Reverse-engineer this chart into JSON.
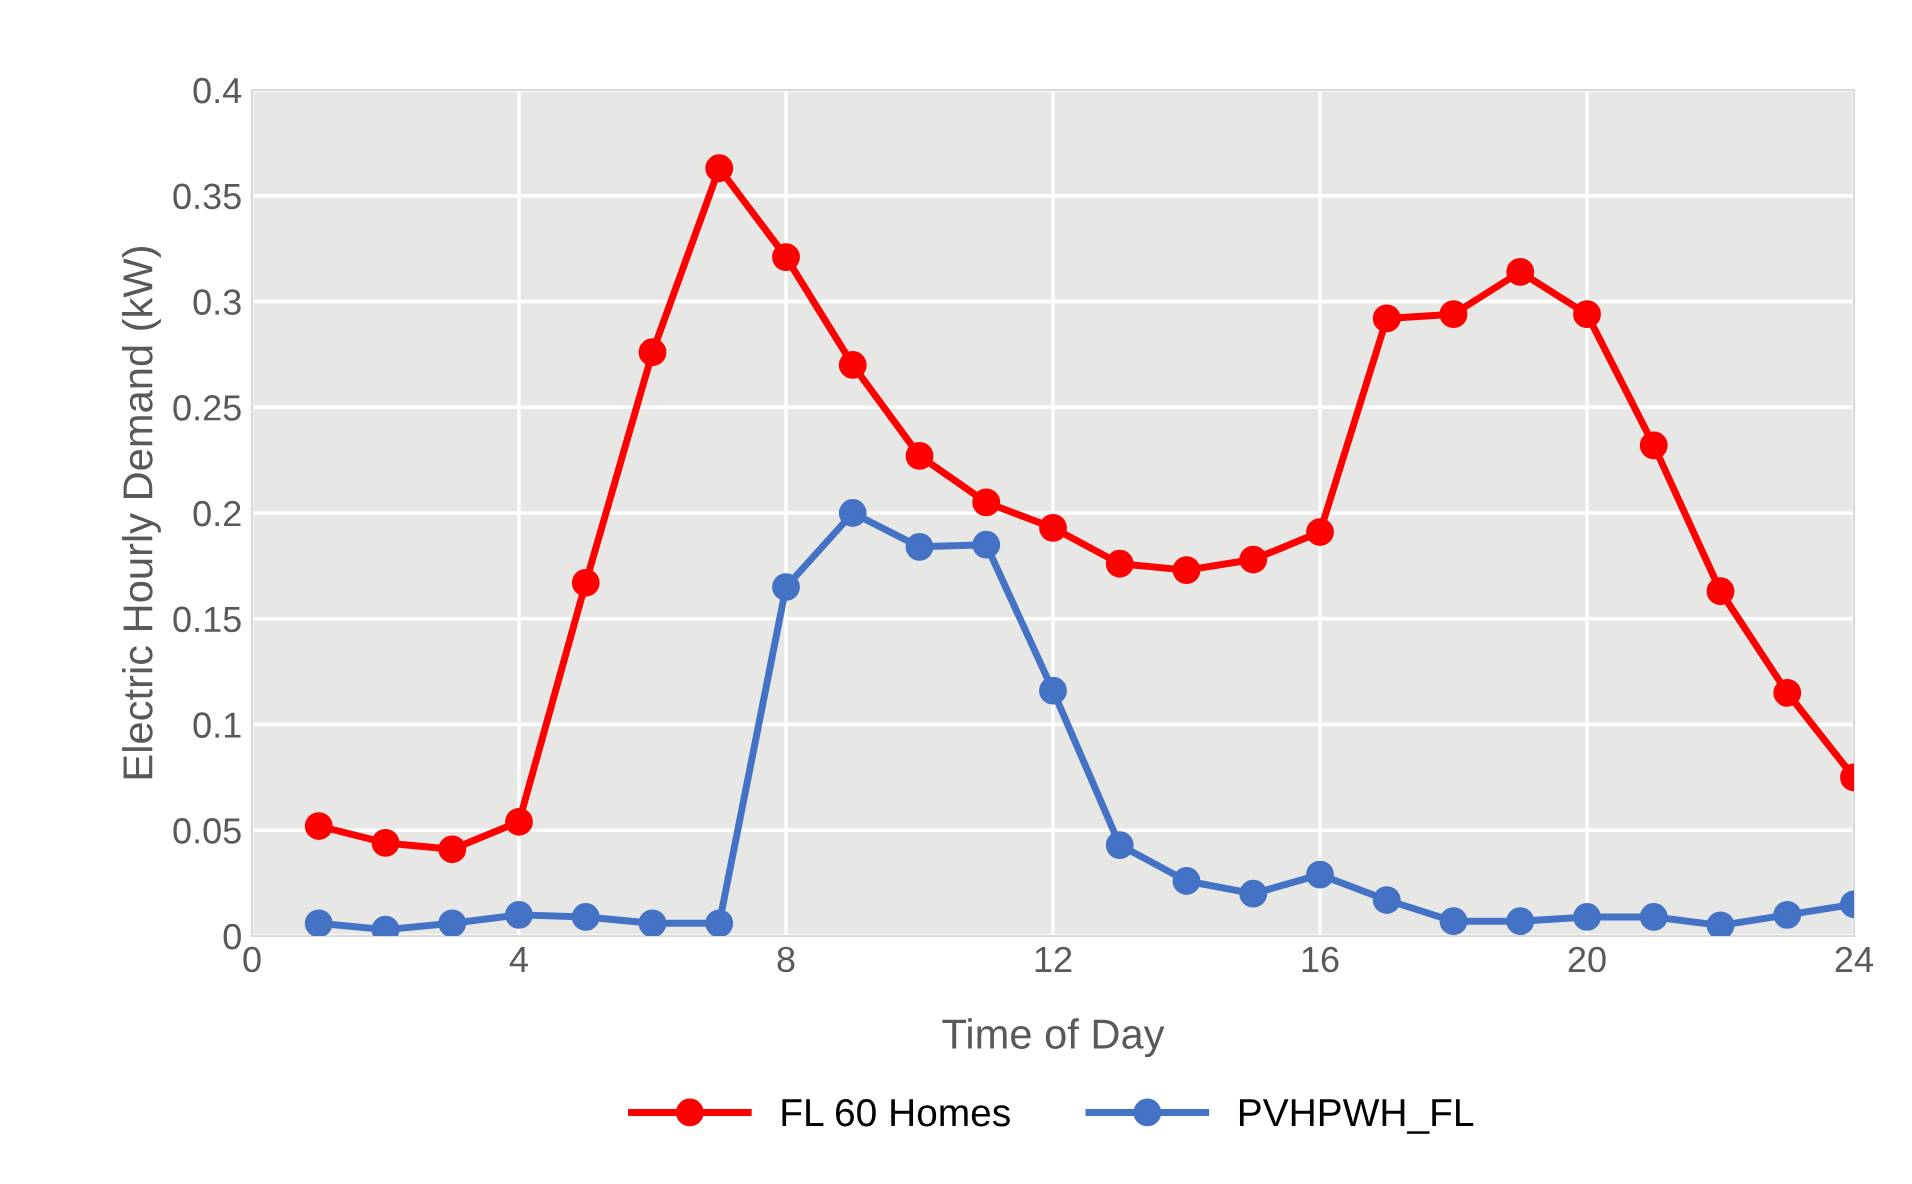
{
  "chart_data": {
    "type": "line",
    "xlabel": "Time of Day",
    "ylabel": "Electric Hourly Demand (kW)",
    "x": [
      1,
      2,
      3,
      4,
      5,
      6,
      7,
      8,
      9,
      10,
      11,
      12,
      13,
      14,
      15,
      16,
      17,
      18,
      19,
      20,
      21,
      22,
      23,
      24
    ],
    "series": [
      {
        "name": "FL 60 Homes",
        "color": "#ff0000",
        "values": [
          0.052,
          0.044,
          0.041,
          0.054,
          0.167,
          0.276,
          0.363,
          0.321,
          0.27,
          0.227,
          0.205,
          0.193,
          0.176,
          0.173,
          0.178,
          0.191,
          0.292,
          0.294,
          0.314,
          0.294,
          0.232,
          0.163,
          0.115,
          0.075
        ]
      },
      {
        "name": "PVHPWH_FL",
        "color": "#4472c4",
        "values": [
          0.006,
          0.003,
          0.006,
          0.01,
          0.009,
          0.006,
          0.006,
          0.165,
          0.2,
          0.184,
          0.185,
          0.116,
          0.043,
          0.026,
          0.02,
          0.029,
          0.017,
          0.007,
          0.007,
          0.009,
          0.009,
          0.005,
          0.01,
          0.015
        ]
      }
    ],
    "xlim": [
      0,
      24
    ],
    "xticks": [
      0,
      4,
      8,
      12,
      16,
      20,
      24
    ],
    "ylim": [
      0,
      0.4
    ],
    "yticks": [
      0,
      0.05,
      0.1,
      0.15,
      0.2,
      0.25,
      0.3,
      0.35,
      0.4
    ],
    "grid": true,
    "legend": "bottom",
    "marker": "circle",
    "line_style": "solid"
  }
}
